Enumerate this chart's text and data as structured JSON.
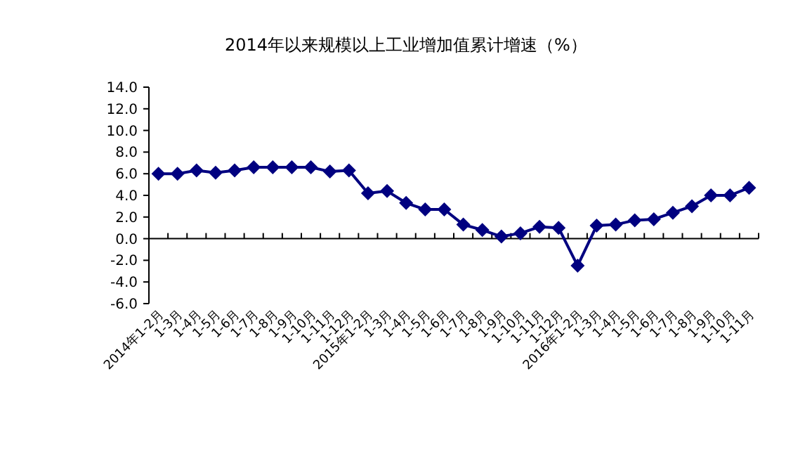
{
  "chart_data": {
    "type": "line",
    "title": "2014年以来规模以上工业增加值累计增速（%）",
    "categories": [
      "2014年1-2月",
      "1-3月",
      "1-4月",
      "1-5月",
      "1-6月",
      "1-7月",
      "1-8月",
      "1-9月",
      "1-10月",
      "1-11月",
      "1-12月",
      "2015年1-2月",
      "1-3月",
      "1-4月",
      "1-5月",
      "1-6月",
      "1-7月",
      "1-8月",
      "1-9月",
      "1-10月",
      "1-11月",
      "1-12月",
      "2016年1-2月",
      "1-3月",
      "1-4月",
      "1-5月",
      "1-6月",
      "1-7月",
      "1-8月",
      "1-9月",
      "1-10月",
      "1-11月"
    ],
    "series": [
      {
        "color": "#000080",
        "values": [
          6.0,
          6.0,
          6.3,
          6.1,
          6.3,
          6.6,
          6.6,
          6.6,
          6.6,
          6.2,
          6.3,
          4.2,
          4.4,
          3.3,
          2.7,
          2.7,
          1.3,
          0.8,
          0.2,
          0.5,
          1.1,
          1.0,
          -2.5,
          1.2,
          1.3,
          1.7,
          1.8,
          2.4,
          3.0,
          4.0,
          4.0,
          4.7
        ]
      }
    ],
    "ylim": [
      -6,
      14
    ],
    "yticks": [
      {
        "value": -6,
        "label": "-6.0"
      },
      {
        "value": -4,
        "label": "-4.0"
      },
      {
        "value": -2,
        "label": "-2.0"
      },
      {
        "value": 0,
        "label": "0.0"
      },
      {
        "value": 2,
        "label": "2.0"
      },
      {
        "value": 4,
        "label": "4.0"
      },
      {
        "value": 6,
        "label": "6.0"
      },
      {
        "value": 8,
        "label": "8.0"
      },
      {
        "value": 10,
        "label": "10.0"
      },
      {
        "value": 12,
        "label": "12.0"
      },
      {
        "value": 14,
        "label": "14.0"
      }
    ],
    "marker": "diamond"
  }
}
